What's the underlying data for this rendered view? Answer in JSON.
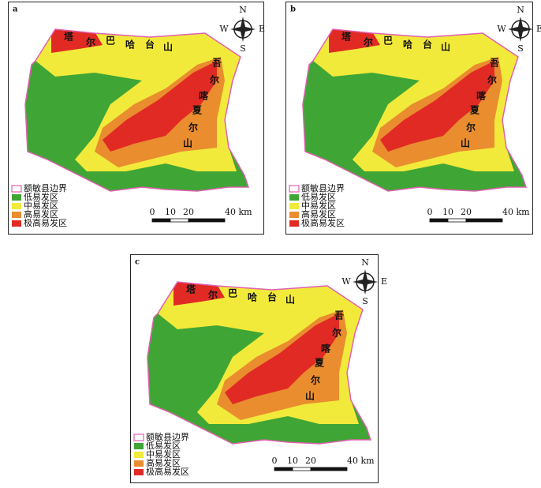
{
  "panels": [
    {
      "label": "a",
      "compass": [
        "N",
        "S",
        "W",
        "E"
      ],
      "north_range": [
        "塔",
        "尔",
        "巴",
        "哈",
        "台",
        "山"
      ],
      "south_range": [
        "吾",
        "尔",
        "喀",
        "夏",
        "尔",
        "山"
      ],
      "legend": [
        "额敏县边界",
        "低易发区",
        "中易发区",
        "高易发区",
        "极高易发区"
      ],
      "scale": [
        "0",
        "10",
        "20",
        "40 km"
      ]
    },
    {
      "label": "b",
      "compass": [
        "N",
        "S",
        "W",
        "E"
      ],
      "north_range": [
        "塔",
        "尔",
        "巴",
        "哈",
        "台",
        "山"
      ],
      "south_range": [
        "吾",
        "尔",
        "喀",
        "夏",
        "尔",
        "山"
      ],
      "legend": [
        "额敏县边界",
        "低易发区",
        "中易发区",
        "高易发区",
        "极高易发区"
      ],
      "scale": [
        "0",
        "10",
        "20",
        "40 km"
      ]
    },
    {
      "label": "c",
      "compass": [
        "N",
        "S",
        "W",
        "E"
      ],
      "north_range": [
        "塔",
        "尔",
        "巴",
        "哈",
        "台",
        "山"
      ],
      "south_range": [
        "吾",
        "尔",
        "喀",
        "夏",
        "尔",
        "山"
      ],
      "legend": [
        "额敏县边界",
        "低易发区",
        "中易发区",
        "高易发区",
        "极高易发区"
      ],
      "scale": [
        "0",
        "10",
        "20",
        "40 km"
      ]
    }
  ]
}
